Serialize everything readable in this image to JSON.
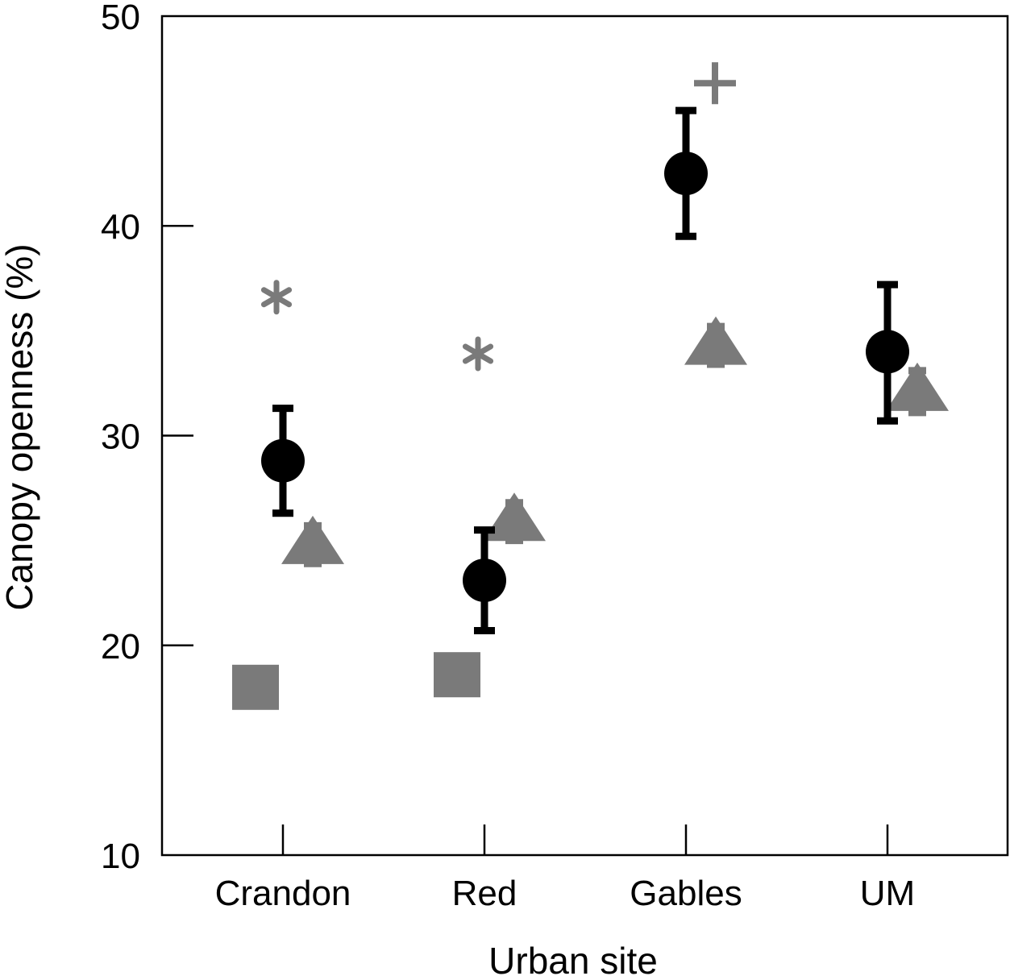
{
  "chart_data": {
    "type": "scatter",
    "xlabel": "Urban site",
    "ylabel": "Canopy openness (%)",
    "categories": [
      "Crandon",
      "Red",
      "Gables",
      "UM"
    ],
    "ylim": [
      10,
      50
    ],
    "yticks": [
      10,
      20,
      30,
      40,
      50
    ],
    "grid": false,
    "colors": {
      "mean": "#000000",
      "marker": "#7a7a7a"
    },
    "series": [
      {
        "marker": "circle-with-error-bars",
        "color": "#000000",
        "points": [
          {
            "category": "Crandon",
            "y": 28.8,
            "low": 26.3,
            "high": 31.3
          },
          {
            "category": "Red",
            "y": 23.1,
            "low": 20.7,
            "high": 25.5
          },
          {
            "category": "Gables",
            "y": 42.5,
            "low": 39.5,
            "high": 45.5
          },
          {
            "category": "UM",
            "y": 34.0,
            "low": 30.7,
            "high": 37.2
          }
        ]
      },
      {
        "marker": "triangle",
        "color": "#7a7a7a",
        "points": [
          {
            "category": "Crandon",
            "y": 24.8,
            "low": 23.9,
            "high": 25.7
          },
          {
            "category": "Red",
            "y": 25.9,
            "low": 25.0,
            "high": 26.8
          },
          {
            "category": "Gables",
            "y": 34.3,
            "low": 33.4,
            "high": 35.2
          },
          {
            "category": "UM",
            "y": 32.1,
            "low": 31.1,
            "high": 33.1
          }
        ]
      },
      {
        "marker": "square",
        "color": "#7a7a7a",
        "points": [
          {
            "category": "Crandon",
            "y": 18.0
          },
          {
            "category": "Red",
            "y": 18.6
          }
        ]
      },
      {
        "marker": "asterisk",
        "color": "#7a7a7a",
        "points": [
          {
            "category": "Crandon",
            "y": 36.6
          },
          {
            "category": "Red",
            "y": 33.9
          }
        ]
      },
      {
        "marker": "plus",
        "color": "#7a7a7a",
        "points": [
          {
            "category": "Gables",
            "y": 46.8
          }
        ]
      }
    ]
  }
}
